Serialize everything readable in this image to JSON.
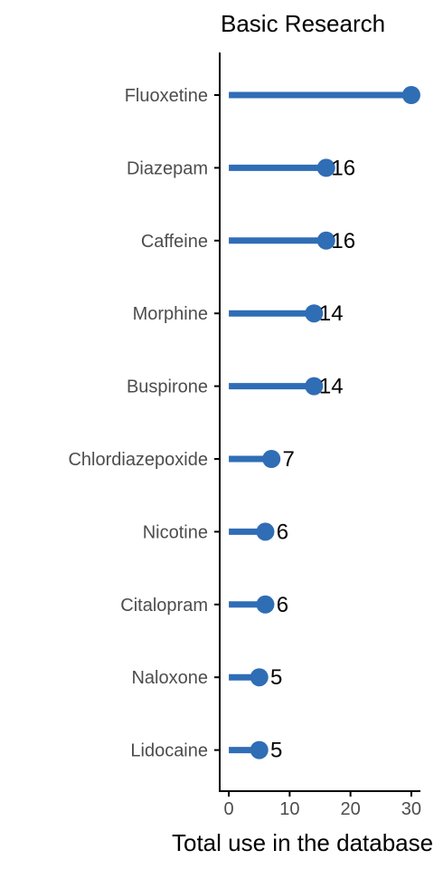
{
  "chart_data": {
    "type": "lollipop",
    "title": "Basic Research",
    "xlabel": "Total use in the database",
    "ylabel": "",
    "categories": [
      "Fluoxetine",
      "Diazepam",
      "Caffeine",
      "Morphine",
      "Buspirone",
      "Chlordiazepoxide",
      "Nicotine",
      "Citalopram",
      "Naloxone",
      "Lidocaine"
    ],
    "values": [
      30,
      16,
      16,
      14,
      14,
      7,
      6,
      6,
      5,
      5
    ],
    "data_labels": [
      "",
      "16",
      "16",
      "14",
      "14",
      "7",
      "6",
      "6",
      "5",
      "5"
    ],
    "xlim": [
      -1.5,
      31.5
    ],
    "xticks": [
      "0",
      "10",
      "20",
      "30"
    ],
    "grid": false,
    "legend": "none",
    "color": "#2f6db5"
  }
}
